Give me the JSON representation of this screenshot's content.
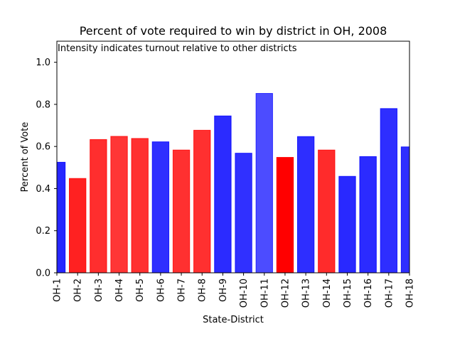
{
  "chart_data": {
    "type": "bar",
    "title": "Percent of vote required to win by district in OH, 2008",
    "annotation": "Intensity indicates turnout relative to other districts",
    "xlabel": "State-District",
    "ylabel": "Percent of Vote",
    "ylim": [
      0,
      1.1
    ],
    "yticks": [
      "0.0",
      "0.2",
      "0.4",
      "0.6",
      "0.8",
      "1.0"
    ],
    "categories": [
      "OH-1",
      "OH-2",
      "OH-3",
      "OH-4",
      "OH-5",
      "OH-6",
      "OH-7",
      "OH-8",
      "OH-9",
      "OH-10",
      "OH-11",
      "OH-12",
      "OH-13",
      "OH-14",
      "OH-15",
      "OH-16",
      "OH-17",
      "OH-18"
    ],
    "values": [
      0.525,
      0.448,
      0.633,
      0.648,
      0.638,
      0.622,
      0.583,
      0.677,
      0.745,
      0.568,
      0.852,
      0.548,
      0.647,
      0.583,
      0.458,
      0.552,
      0.78,
      0.598
    ],
    "colors": [
      "#0000ff",
      "#ff0000",
      "#ff0000",
      "#ff0000",
      "#ff0000",
      "#0000ff",
      "#ff0000",
      "#ff0000",
      "#0000ff",
      "#0000ff",
      "#0000ff",
      "#ff0000",
      "#0000ff",
      "#ff0000",
      "#0000ff",
      "#0000ff",
      "#0000ff",
      "#0000ff"
    ],
    "intensity": [
      0.85,
      0.87,
      0.82,
      0.79,
      0.81,
      0.82,
      0.81,
      0.81,
      0.83,
      0.81,
      0.7,
      1.0,
      0.82,
      0.83,
      0.84,
      0.83,
      0.82,
      0.82
    ],
    "grid": false,
    "legend": "none"
  }
}
